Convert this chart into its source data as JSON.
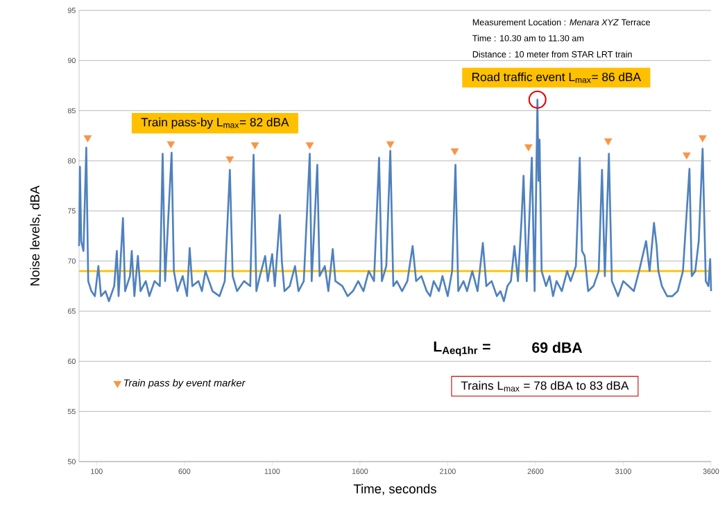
{
  "chart_data": {
    "type": "line",
    "xlabel": "Time, seconds",
    "ylabel": "Noise levels, dBA",
    "xlim": [
      0,
      3600
    ],
    "ylim": [
      50,
      95
    ],
    "xticks": [
      100,
      600,
      1100,
      1600,
      2100,
      2600,
      3100,
      3600
    ],
    "yticks": [
      50,
      55,
      60,
      65,
      70,
      75,
      80,
      85,
      90,
      95
    ],
    "grid": "y",
    "legend": "bottom left",
    "series": [
      {
        "color": "#4f81bd",
        "x": [
          0,
          5,
          12,
          25,
          41,
          52,
          70,
          90,
          110,
          125,
          150,
          170,
          200,
          215,
          225,
          250,
          262,
          290,
          300,
          315,
          335,
          350,
          380,
          400,
          430,
          460,
          476,
          490,
          527,
          540,
          560,
          590,
          615,
          630,
          645,
          680,
          700,
          720,
          760,
          800,
          830,
          859,
          875,
          900,
          940,
          975,
          994,
          1010,
          1030,
          1060,
          1075,
          1100,
          1115,
          1144,
          1155,
          1170,
          1200,
          1230,
          1250,
          1280,
          1314,
          1325,
          1357,
          1370,
          1400,
          1420,
          1445,
          1460,
          1500,
          1530,
          1560,
          1590,
          1620,
          1650,
          1680,
          1709,
          1725,
          1750,
          1773,
          1790,
          1810,
          1840,
          1870,
          1900,
          1920,
          1950,
          1980,
          2000,
          2020,
          2050,
          2070,
          2100,
          2125,
          2144,
          2160,
          2190,
          2210,
          2240,
          2270,
          2300,
          2320,
          2350,
          2380,
          2400,
          2420,
          2440,
          2460,
          2480,
          2500,
          2520,
          2532,
          2550,
          2579,
          2595,
          2611,
          2617,
          2623,
          2635,
          2660,
          2680,
          2700,
          2720,
          2750,
          2780,
          2800,
          2830,
          2852,
          2865,
          2880,
          2900,
          2930,
          2960,
          2979,
          2995,
          3018,
          3035,
          3070,
          3100,
          3130,
          3160,
          3190,
          3230,
          3250,
          3275,
          3290,
          3300,
          3320,
          3350,
          3380,
          3410,
          3440,
          3477,
          3490,
          3510,
          3530,
          3552,
          3570,
          3585,
          3595,
          3600
        ],
        "values": [
          71.5,
          79.4,
          72,
          71,
          81.3,
          68,
          67,
          66.5,
          69.5,
          66.5,
          67,
          66,
          67.5,
          71,
          66.5,
          74.3,
          67,
          68.5,
          71,
          66.5,
          70.5,
          67,
          68,
          66.5,
          68,
          67.5,
          80.7,
          68,
          80.8,
          69,
          67,
          68.5,
          66.5,
          71.3,
          67.5,
          68,
          67,
          69,
          67,
          66.5,
          68,
          79.1,
          68.5,
          67,
          68,
          67.5,
          80.6,
          67,
          68.5,
          70.5,
          68,
          70.7,
          67.5,
          74.6,
          70,
          67,
          67.5,
          69.5,
          67,
          68,
          80.7,
          68,
          79.6,
          68.5,
          69.5,
          67,
          71.2,
          68,
          67.5,
          66.5,
          67,
          68,
          67,
          69,
          68,
          80.3,
          68,
          69.5,
          81.0,
          67.5,
          68,
          67,
          68,
          71.5,
          68,
          68.5,
          67,
          66.5,
          68,
          67,
          68.5,
          66.5,
          69,
          79.6,
          67,
          68,
          67,
          69,
          67,
          71.8,
          67.5,
          68,
          66.5,
          67,
          66,
          67.5,
          68,
          71.5,
          68,
          74,
          78.5,
          68,
          80.3,
          67,
          86.1,
          78,
          82.1,
          69,
          67.5,
          68.5,
          66.5,
          68,
          67,
          69,
          68,
          69.5,
          80.3,
          71,
          70.5,
          67,
          67.5,
          69,
          79.1,
          68.5,
          80.7,
          68,
          66.5,
          68,
          67.5,
          67,
          69,
          72,
          69,
          73.8,
          71.5,
          69,
          67.5,
          66.5,
          66.5,
          67,
          69,
          79.2,
          68.5,
          69,
          72,
          81.2,
          68,
          67.5,
          70.2,
          67
        ]
      },
      {
        "type": "scatter",
        "name": "Train pass by event marker",
        "color": "#f79646",
        "marker": "triangle",
        "x": [
          49,
          523,
          859,
          1002,
          1314,
          1773,
          2140,
          2560,
          3014,
          3461,
          3552
        ],
        "values": [
          82.3,
          81.7,
          80.2,
          81.6,
          81.6,
          81.7,
          81.0,
          81.4,
          82.0,
          80.6,
          82.3
        ]
      }
    ],
    "ref_lines": [
      {
        "axis": "y",
        "value": 69,
        "color": "#ffc000"
      }
    ],
    "annotations": [
      "Train pass-by L$_{max}$= 82 dBA",
      {
        "text": "Road traffic event L$_{max}$= 86 dBA",
        "x": 2611,
        "y": 86.1
      },
      "Measurement Location : *Menara XYZ* Terrace",
      "Time : 10.30 am to 11.30 am",
      "Distance : 10 meter from STAR LRT train",
      "L$_{Aeq1hr}$ =",
      "69 dBA",
      "Trains L$_{max}$  = 78 dBA to 83 dBA"
    ]
  }
}
